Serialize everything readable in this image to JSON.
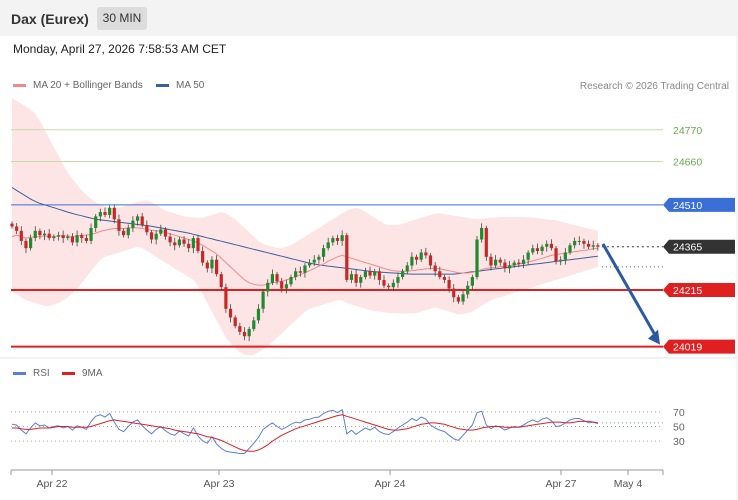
{
  "header": {
    "title": "Dax (Eurex)",
    "interval": "30 MIN"
  },
  "datetime": "Monday, April 27, 2026 7:58:53 AM CET",
  "legend": {
    "ma20": {
      "label": "MA 20 + Bollinger Bands",
      "color": "#f08a8a"
    },
    "ma50": {
      "label": "MA 50",
      "color": "#3a5fa0"
    }
  },
  "copyright": "Research © 2026 Trading Central",
  "rsi_legend": {
    "rsi": {
      "label": "RSI",
      "color": "#5b7fd9"
    },
    "ma9": {
      "label": "9MA",
      "color": "#e02020"
    }
  },
  "colors": {
    "up": "#1e8c2e",
    "down": "#c62828",
    "resistance": "#6aa84f",
    "pivot": "#3a6fd8",
    "support": "#e02020",
    "arrow": "#2c5aa0"
  },
  "chart_data": [
    {
      "type": "line",
      "title": "Dax (Eurex)",
      "ylim": [
        23990,
        24880
      ],
      "x_ticks": [
        "Apr 22",
        "Apr 23",
        "Apr 24",
        "Apr 27",
        "May 4"
      ],
      "levels": [
        {
          "label": "24770",
          "value": 24770,
          "kind": "resistance"
        },
        {
          "label": "24660",
          "value": 24660,
          "kind": "resistance"
        },
        {
          "label": "24510",
          "value": 24510,
          "kind": "pivot"
        },
        {
          "label": "24365",
          "value": 24365,
          "kind": "last"
        },
        {
          "label": "24215",
          "value": 24215,
          "kind": "support"
        },
        {
          "label": "24019",
          "value": 24019,
          "kind": "support"
        }
      ],
      "forecast": {
        "from": 24375,
        "to": 24019,
        "direction": "down"
      },
      "close": [
        24435,
        24420,
        24385,
        24360,
        24395,
        24420,
        24405,
        24410,
        24395,
        24400,
        24405,
        24395,
        24400,
        24380,
        24405,
        24395,
        24385,
        24430,
        24470,
        24485,
        24475,
        24500,
        24460,
        24420,
        24405,
        24430,
        24455,
        24470,
        24440,
        24415,
        24390,
        24410,
        24425,
        24400,
        24380,
        24370,
        24390,
        24375,
        24360,
        24395,
        24350,
        24310,
        24290,
        24320,
        24270,
        24225,
        24150,
        24120,
        24090,
        24070,
        24055,
        24080,
        24110,
        24150,
        24210,
        24240,
        24270,
        24245,
        24220,
        24235,
        24260,
        24280,
        24275,
        24300,
        24310,
        24320,
        24330,
        24360,
        24380,
        24395,
        24385,
        24405,
        24250,
        24270,
        24240,
        24260,
        24280,
        24265,
        24280,
        24250,
        24230,
        24225,
        24240,
        24260,
        24280,
        24300,
        24330,
        24320,
        24345,
        24335,
        24300,
        24280,
        24260,
        24250,
        24220,
        24190,
        24175,
        24200,
        24230,
        24260,
        24390,
        24430,
        24330,
        24300,
        24320,
        24310,
        24290,
        24300,
        24310,
        24305,
        24320,
        24345,
        24360,
        24350,
        24365,
        24375,
        24360,
        24315,
        24320,
        24345,
        24370,
        24385,
        24385,
        24375,
        24365,
        24370,
        24365
      ],
      "ma20": [
        24400,
        24405,
        24400,
        24395,
        24398,
        24400,
        24400,
        24402,
        24400,
        24400,
        24402,
        24402,
        24402,
        24400,
        24402,
        24405,
        24405,
        24408,
        24412,
        24418,
        24422,
        24425,
        24428,
        24428,
        24428,
        24430,
        24430,
        24430,
        24428,
        24425,
        24422,
        24420,
        24418,
        24415,
        24410,
        24405,
        24400,
        24395,
        24390,
        24385,
        24378,
        24370,
        24360,
        24350,
        24340,
        24325,
        24310,
        24295,
        24280,
        24265,
        24250,
        24240,
        24235,
        24232,
        24232,
        24235,
        24240,
        24242,
        24245,
        24250,
        24255,
        24262,
        24268,
        24275,
        24282,
        24290,
        24298,
        24305,
        24315,
        24322,
        24330,
        24335,
        24330,
        24325,
        24320,
        24315,
        24310,
        24305,
        24300,
        24295,
        24290,
        24285,
        24282,
        24280,
        24280,
        24280,
        24282,
        24284,
        24286,
        24288,
        24290,
        24290,
        24288,
        24285,
        24282,
        24278,
        24275,
        24274,
        24274,
        24276,
        24280,
        24286,
        24290,
        24292,
        24294,
        24296,
        24298,
        24300,
        24302,
        24305,
        24308,
        24312,
        24316,
        24320,
        24325,
        24330,
        24335,
        24338,
        24340,
        24342,
        24345,
        24348,
        24350,
        24352,
        24355,
        24358,
        24360
      ],
      "ma50": [
        24570,
        24560,
        24550,
        24540,
        24530,
        24522,
        24515,
        24510,
        24505,
        24500,
        24495,
        24490,
        24485,
        24480,
        24476,
        24472,
        24468,
        24464,
        24460,
        24458,
        24456,
        24454,
        24452,
        24450,
        24448,
        24446,
        24444,
        24442,
        24440,
        24438,
        24436,
        24433,
        24430,
        24427,
        24424,
        24421,
        24418,
        24415,
        24412,
        24408,
        24404,
        24400,
        24396,
        24392,
        24388,
        24384,
        24380,
        24376,
        24372,
        24368,
        24364,
        24360,
        24356,
        24352,
        24348,
        24344,
        24340,
        24336,
        24332,
        24328,
        24324,
        24320,
        24316,
        24312,
        24308,
        24305,
        24302,
        24300,
        24298,
        24296,
        24294,
        24292,
        24290,
        24288,
        24286,
        24284,
        24282,
        24280,
        24278,
        24277,
        24276,
        24275,
        24274,
        24273,
        24272,
        24271,
        24270,
        24270,
        24270,
        24270,
        24270,
        24270,
        24270,
        24270,
        24270,
        24270,
        24272,
        24274,
        24276,
        24278,
        24280,
        24282,
        24284,
        24286,
        24288,
        24290,
        24292,
        24294,
        24296,
        24298,
        24300,
        24302,
        24304,
        24306,
        24308,
        24310,
        24312,
        24314,
        24316,
        24318,
        24320,
        24322,
        24324,
        24326,
        24328,
        24330,
        24332
      ],
      "bb_upper": [
        24880,
        24870,
        24860,
        24850,
        24840,
        24825,
        24800,
        24770,
        24740,
        24710,
        24680,
        24650,
        24620,
        24600,
        24580,
        24560,
        24545,
        24530,
        24520,
        24510,
        24505,
        24500,
        24500,
        24500,
        24505,
        24510,
        24515,
        24520,
        24525,
        24525,
        24520,
        24510,
        24500,
        24490,
        24485,
        24480,
        24475,
        24470,
        24468,
        24466,
        24465,
        24465,
        24470,
        24475,
        24480,
        24485,
        24480,
        24470,
        24460,
        24445,
        24430,
        24415,
        24400,
        24385,
        24375,
        24370,
        24365,
        24360,
        24360,
        24365,
        24370,
        24380,
        24390,
        24400,
        24410,
        24420,
        24430,
        24440,
        24450,
        24460,
        24470,
        24480,
        24490,
        24495,
        24500,
        24495,
        24485,
        24475,
        24465,
        24455,
        24445,
        24440,
        24440,
        24440,
        24445,
        24450,
        24455,
        24460,
        24465,
        24470,
        24475,
        24480,
        24480,
        24478,
        24475,
        24472,
        24470,
        24468,
        24465,
        24462,
        24460,
        24462,
        24464,
        24466,
        24466,
        24468,
        24468,
        24468,
        24468,
        24468,
        24468,
        24466,
        24466,
        24464,
        24462,
        24460,
        24458,
        24456,
        24452,
        24448,
        24444,
        24440,
        24436,
        24432,
        24428,
        24424,
        24420
      ],
      "bb_lower": [
        24210,
        24200,
        24190,
        24180,
        24175,
        24170,
        24165,
        24160,
        24160,
        24165,
        24170,
        24180,
        24190,
        24205,
        24220,
        24240,
        24260,
        24280,
        24300,
        24320,
        24330,
        24335,
        24340,
        24345,
        24350,
        24355,
        24360,
        24365,
        24360,
        24350,
        24340,
        24330,
        24320,
        24310,
        24300,
        24290,
        24280,
        24270,
        24260,
        24250,
        24230,
        24200,
        24170,
        24140,
        24110,
        24080,
        24050,
        24030,
        24015,
        24000,
        23990,
        23990,
        23990,
        24000,
        24010,
        24020,
        24035,
        24050,
        24065,
        24080,
        24095,
        24110,
        24125,
        24140,
        24150,
        24155,
        24160,
        24165,
        24170,
        24175,
        24180,
        24180,
        24170,
        24165,
        24160,
        24155,
        24150,
        24145,
        24142,
        24140,
        24138,
        24136,
        24135,
        24134,
        24134,
        24134,
        24135,
        24136,
        24140,
        24145,
        24150,
        24155,
        24150,
        24145,
        24140,
        24135,
        24130,
        24132,
        24135,
        24140,
        24150,
        24160,
        24170,
        24180,
        24185,
        24190,
        24195,
        24200,
        24205,
        24210,
        24215,
        24220,
        24225,
        24230,
        24235,
        24240,
        24245,
        24250,
        24255,
        24260,
        24265,
        24270,
        24275,
        24280,
        24285,
        24290,
        24295
      ],
      "rsi": [
        53,
        52,
        45,
        40,
        48,
        55,
        51,
        52,
        48,
        50,
        51,
        48,
        50,
        45,
        51,
        49,
        46,
        57,
        64,
        66,
        63,
        68,
        56,
        46,
        43,
        50,
        56,
        59,
        51,
        45,
        40,
        46,
        50,
        44,
        40,
        38,
        44,
        40,
        37,
        48,
        37,
        30,
        27,
        36,
        26,
        20,
        16,
        15,
        14,
        13,
        13,
        20,
        27,
        35,
        46,
        51,
        55,
        50,
        46,
        49,
        53,
        56,
        55,
        59,
        60,
        62,
        63,
        68,
        71,
        72,
        69,
        73,
        40,
        45,
        39,
        44,
        48,
        45,
        49,
        43,
        40,
        39,
        43,
        48,
        52,
        56,
        61,
        58,
        63,
        60,
        52,
        48,
        45,
        43,
        38,
        33,
        31,
        38,
        45,
        52,
        69,
        71,
        52,
        47,
        51,
        49,
        45,
        48,
        50,
        49,
        52,
        56,
        59,
        56,
        60,
        62,
        58,
        50,
        51,
        55,
        59,
        61,
        61,
        58,
        55,
        56,
        54
      ],
      "rsi_ma9": [
        48,
        48,
        47,
        46,
        46,
        47,
        48,
        48,
        48,
        49,
        50,
        50,
        50,
        49,
        49,
        49,
        49,
        50,
        52,
        54,
        56,
        58,
        59,
        58,
        57,
        56,
        55,
        54,
        53,
        52,
        51,
        50,
        49,
        48,
        47,
        45,
        44,
        43,
        42,
        41,
        40,
        38,
        36,
        35,
        33,
        31,
        28,
        25,
        22,
        19,
        17,
        16,
        16,
        18,
        21,
        25,
        30,
        34,
        38,
        41,
        44,
        47,
        49,
        51,
        53,
        55,
        57,
        59,
        61,
        63,
        65,
        66,
        64,
        62,
        60,
        58,
        56,
        54,
        52,
        50,
        48,
        46,
        45,
        45,
        46,
        47,
        49,
        51,
        53,
        54,
        55,
        55,
        54,
        53,
        51,
        49,
        47,
        46,
        45,
        45,
        46,
        48,
        49,
        50,
        50,
        50,
        49,
        49,
        49,
        49,
        50,
        51,
        52,
        53,
        54,
        55,
        56,
        56,
        56,
        55,
        55,
        56,
        57,
        57,
        57,
        56,
        55
      ],
      "rsi_levels": [
        {
          "label": "70",
          "value": 70
        },
        {
          "label": "50",
          "value": 50
        },
        {
          "label": "30",
          "value": 30
        }
      ]
    }
  ]
}
